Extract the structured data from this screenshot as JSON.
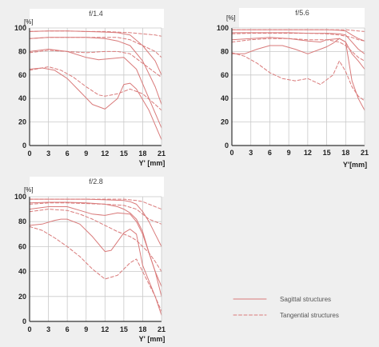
{
  "colors": {
    "curve": "#d97a7a",
    "grid": "#c9c9c9",
    "frame": "#333333",
    "background": "#efefef",
    "panel": "#ffffff"
  },
  "legend": {
    "sagittal": "Sagittal structures",
    "tangential": "Tangential structures"
  },
  "chart_data": [
    {
      "type": "line",
      "title": "f/1.4",
      "ylabel": "[%]",
      "xlabel": "Y' [mm]",
      "xlim": [
        0,
        21
      ],
      "ylim": [
        0,
        100
      ],
      "xticks": [
        0,
        3,
        6,
        9,
        12,
        15,
        18,
        21
      ],
      "yticks": [
        0,
        20,
        40,
        60,
        80,
        100
      ],
      "grid": true,
      "legend_position": "bottom-right",
      "series": [
        {
          "style": "solid",
          "x": [
            0,
            3,
            6,
            9,
            12,
            14,
            16,
            18,
            20,
            21
          ],
          "y": [
            97,
            97.5,
            97.5,
            97,
            96.5,
            96,
            94,
            85,
            72,
            60
          ]
        },
        {
          "style": "dashed",
          "x": [
            0,
            3,
            6,
            9,
            12,
            14,
            16,
            18,
            20,
            21
          ],
          "y": [
            97,
            97.5,
            97.5,
            97,
            97,
            96.5,
            96,
            95,
            94,
            93
          ]
        },
        {
          "style": "solid",
          "x": [
            0,
            3,
            6,
            9,
            12,
            14,
            16,
            18,
            20,
            21
          ],
          "y": [
            91,
            92,
            92,
            92,
            91,
            89,
            85,
            72,
            50,
            35
          ]
        },
        {
          "style": "dashed",
          "x": [
            0,
            3,
            6,
            9,
            12,
            14,
            16,
            18,
            20,
            21
          ],
          "y": [
            91,
            92,
            92,
            92,
            92,
            92,
            90,
            85,
            80,
            75
          ]
        },
        {
          "style": "solid",
          "x": [
            0,
            3,
            6,
            9,
            11,
            13,
            15,
            17,
            19,
            21
          ],
          "y": [
            80,
            82,
            80,
            75,
            73,
            74,
            75,
            65,
            40,
            15
          ]
        },
        {
          "style": "dashed",
          "x": [
            0,
            3,
            6,
            9,
            12,
            14,
            16,
            18,
            20,
            21
          ],
          "y": [
            79,
            81,
            80,
            79,
            80,
            80,
            78,
            70,
            62,
            58
          ]
        },
        {
          "style": "solid",
          "x": [
            0,
            2,
            4,
            6,
            8,
            10,
            12,
            14,
            15,
            16,
            17,
            19,
            21
          ],
          "y": [
            65,
            66,
            64,
            57,
            46,
            35,
            31,
            40,
            52,
            53,
            48,
            30,
            5
          ]
        },
        {
          "style": "dashed",
          "x": [
            0,
            3,
            5,
            7,
            9,
            11,
            12,
            14,
            16,
            18,
            20,
            21
          ],
          "y": [
            64,
            67,
            64,
            58,
            50,
            43,
            42,
            44,
            48,
            44,
            35,
            30
          ]
        }
      ]
    },
    {
      "type": "line",
      "title": "f/5.6",
      "ylabel": "[%]",
      "xlabel": "Y'[mm]",
      "xlim": [
        0,
        21
      ],
      "ylim": [
        0,
        100
      ],
      "xticks": [
        0,
        3,
        6,
        9,
        12,
        15,
        18,
        21
      ],
      "yticks": [
        0,
        20,
        40,
        60,
        80,
        100
      ],
      "grid": true,
      "series": [
        {
          "style": "solid",
          "x": [
            0,
            3,
            6,
            9,
            12,
            15,
            17,
            18,
            19,
            20,
            21
          ],
          "y": [
            98.5,
            98.5,
            98.5,
            98.5,
            98.5,
            98.5,
            98,
            97.5,
            94,
            91,
            89
          ]
        },
        {
          "style": "dashed",
          "x": [
            0,
            3,
            6,
            9,
            12,
            15,
            17,
            18,
            19,
            20,
            21
          ],
          "y": [
            98.5,
            98.5,
            98.5,
            98.5,
            98.5,
            98.5,
            98.5,
            98.5,
            98,
            97.5,
            97
          ]
        },
        {
          "style": "solid",
          "x": [
            0,
            3,
            6,
            9,
            12,
            15,
            17,
            18,
            19,
            20,
            21
          ],
          "y": [
            96,
            96,
            96,
            96,
            95.5,
            95.5,
            95,
            94,
            88,
            82,
            78
          ]
        },
        {
          "style": "dashed",
          "x": [
            0,
            3,
            6,
            9,
            12,
            15,
            17,
            18,
            19,
            20,
            21
          ],
          "y": [
            95,
            95.5,
            95.5,
            95.5,
            95.5,
            95,
            94,
            93,
            92,
            90,
            89
          ]
        },
        {
          "style": "solid",
          "x": [
            0,
            3,
            6,
            9,
            12,
            14,
            15,
            17,
            18,
            19,
            20,
            21
          ],
          "y": [
            90,
            91,
            92,
            91,
            89,
            88,
            90,
            91,
            88,
            78,
            72,
            65
          ]
        },
        {
          "style": "dashed",
          "x": [
            0,
            3,
            6,
            9,
            12,
            15,
            17,
            18,
            19,
            20,
            21
          ],
          "y": [
            88,
            90,
            91,
            91,
            90,
            90,
            88,
            85,
            80,
            75,
            72
          ]
        },
        {
          "style": "solid",
          "x": [
            0,
            2,
            4,
            6,
            8,
            10,
            12,
            14,
            15,
            16,
            17,
            18,
            19,
            20,
            21
          ],
          "y": [
            78,
            78,
            82,
            85,
            85,
            82,
            78,
            82,
            84,
            87,
            91,
            88,
            55,
            40,
            30
          ]
        },
        {
          "style": "dashed",
          "x": [
            0,
            2,
            4,
            6,
            8,
            10,
            12,
            14,
            16,
            17,
            18,
            19,
            20,
            21
          ],
          "y": [
            79,
            76,
            70,
            62,
            57,
            55,
            57,
            52,
            60,
            72,
            63,
            50,
            42,
            38
          ]
        }
      ]
    },
    {
      "type": "line",
      "title": "f/2.8",
      "ylabel": "[%]",
      "xlabel": "Y' [mm]",
      "xlim": [
        0,
        21
      ],
      "ylim": [
        0,
        100
      ],
      "xticks": [
        0,
        3,
        6,
        9,
        12,
        15,
        18,
        21
      ],
      "yticks": [
        0,
        20,
        40,
        60,
        80,
        100
      ],
      "grid": true,
      "series": [
        {
          "style": "solid",
          "x": [
            0,
            3,
            6,
            9,
            12,
            15,
            16,
            17,
            18,
            19,
            20,
            21
          ],
          "y": [
            98,
            98,
            98,
            98,
            97.5,
            97,
            96,
            94,
            88,
            80,
            70,
            60
          ]
        },
        {
          "style": "dashed",
          "x": [
            0,
            3,
            6,
            9,
            12,
            15,
            17,
            18,
            19,
            20,
            21
          ],
          "y": [
            98,
            98,
            98,
            98,
            98,
            98,
            97,
            96,
            94,
            92,
            90
          ]
        },
        {
          "style": "solid",
          "x": [
            0,
            3,
            6,
            9,
            12,
            14,
            15,
            16,
            17,
            18,
            19,
            20,
            21
          ],
          "y": [
            95,
            95.5,
            95.5,
            95,
            94,
            92,
            90,
            87,
            82,
            72,
            55,
            40,
            28
          ]
        },
        {
          "style": "dashed",
          "x": [
            0,
            3,
            6,
            9,
            12,
            15,
            17,
            18,
            19,
            20,
            21
          ],
          "y": [
            94,
            95,
            95,
            94.5,
            94,
            93,
            90,
            86,
            82,
            80,
            78
          ]
        },
        {
          "style": "solid",
          "x": [
            0,
            3,
            6,
            8,
            10,
            12,
            14,
            16,
            17,
            18,
            19,
            20,
            21
          ],
          "y": [
            90,
            92,
            92,
            89,
            86,
            85,
            87,
            86,
            80,
            70,
            55,
            40,
            20
          ]
        },
        {
          "style": "dashed",
          "x": [
            0,
            3,
            6,
            8,
            10,
            12,
            14,
            16,
            17,
            18,
            19,
            20,
            21
          ],
          "y": [
            88,
            90,
            89,
            86,
            82,
            77,
            72,
            68,
            65,
            60,
            55,
            48,
            40
          ]
        },
        {
          "style": "solid",
          "x": [
            0,
            2,
            4,
            5,
            6,
            8,
            10,
            12,
            13,
            14,
            15,
            16,
            17,
            18,
            20,
            21
          ],
          "y": [
            77,
            78,
            81,
            82,
            82,
            78,
            68,
            56,
            57,
            64,
            71,
            74,
            70,
            45,
            20,
            5
          ]
        },
        {
          "style": "dashed",
          "x": [
            0,
            2,
            4,
            6,
            8,
            10,
            12,
            14,
            16,
            17,
            18,
            20,
            21
          ],
          "y": [
            76,
            73,
            67,
            60,
            52,
            42,
            34,
            37,
            47,
            50,
            40,
            20,
            8
          ]
        }
      ]
    }
  ]
}
